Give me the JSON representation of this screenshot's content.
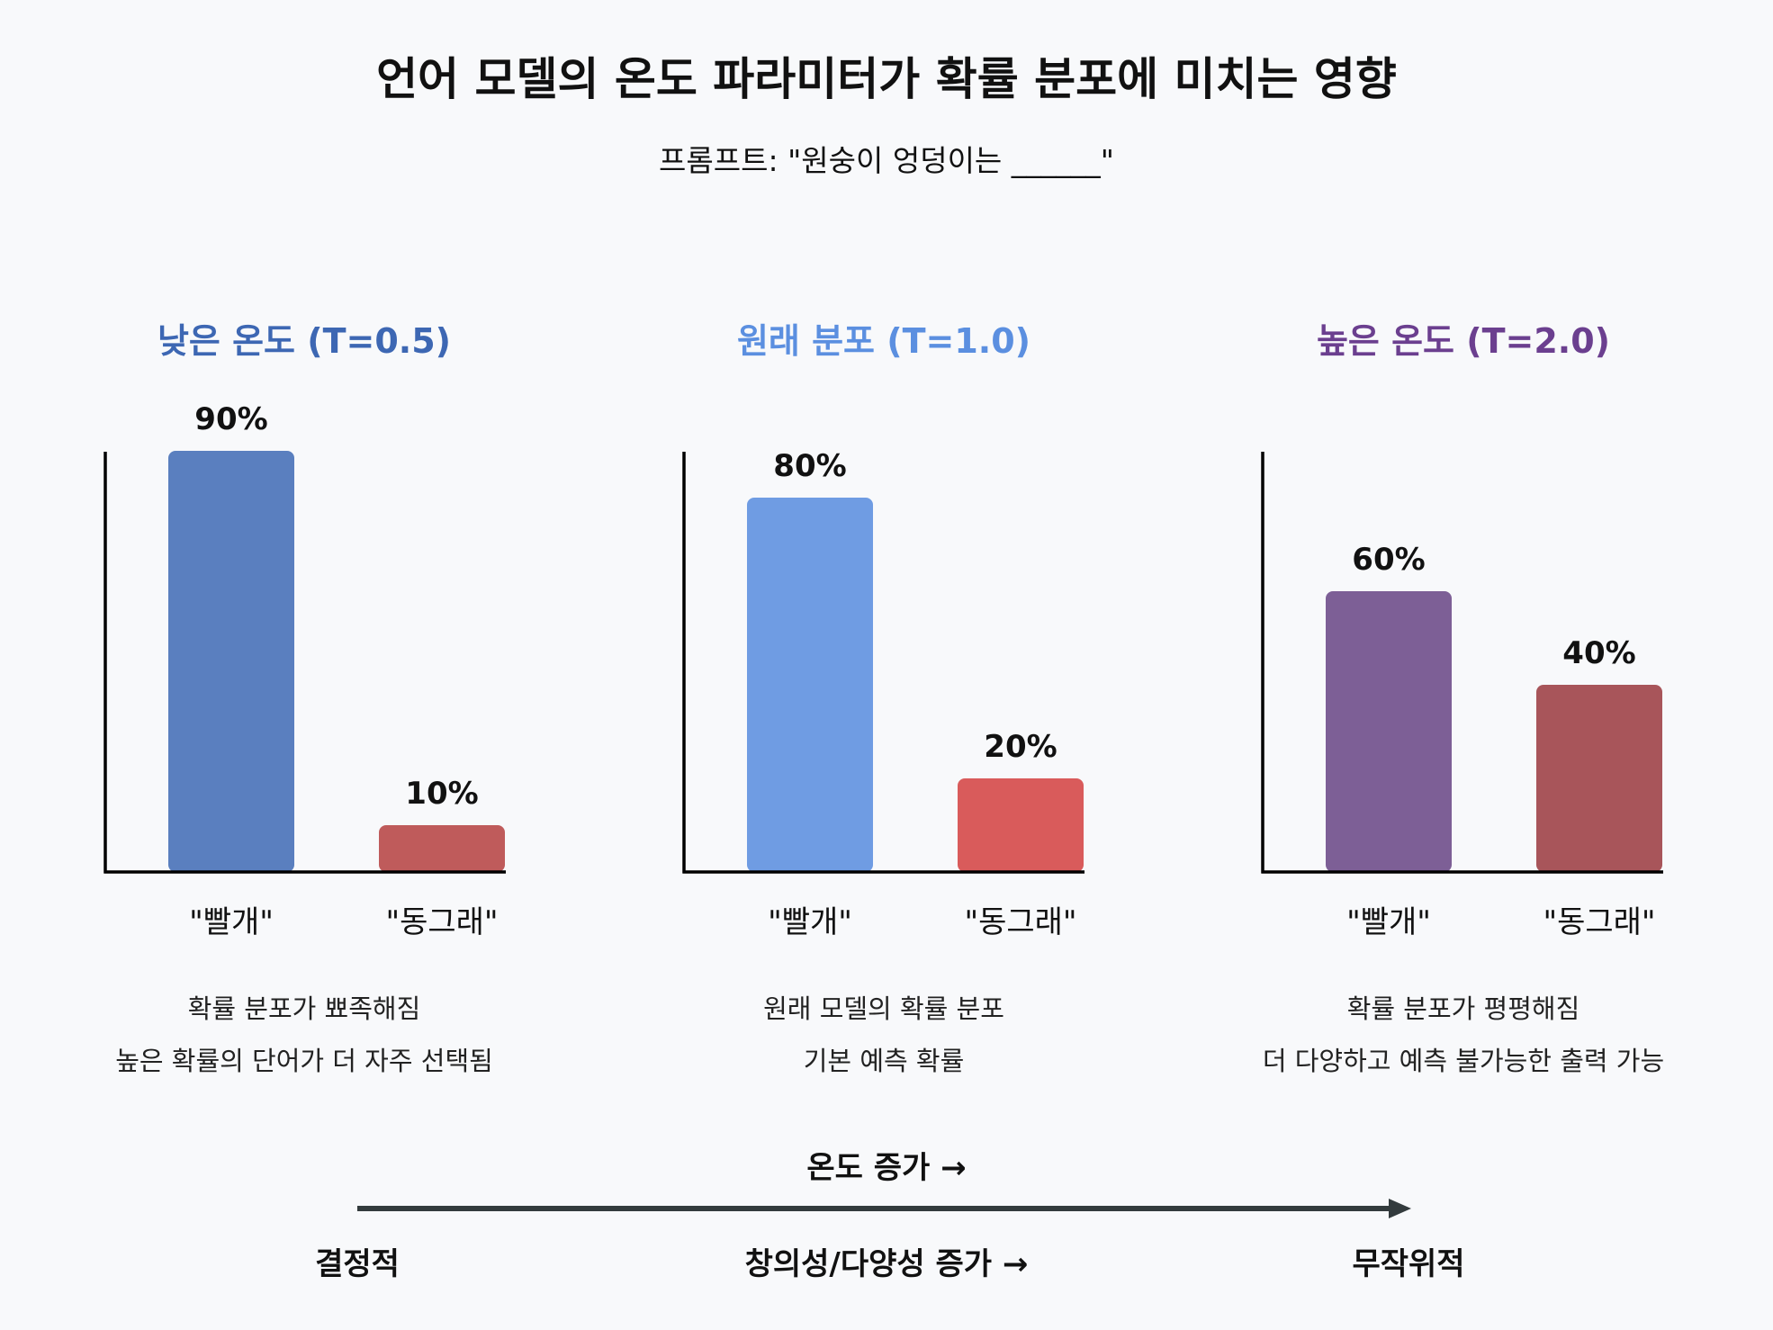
{
  "title": "언어 모델의 온도 파라미터가 확률 분포에 미치는 영향",
  "subtitle": "프롬프트: \"원숭이 엉덩이는 ______\"",
  "chart_data": [
    {
      "type": "bar",
      "title": "낮은 온도 (T=0.5)",
      "title_color": "#3d67b3",
      "categories": [
        "\"빨개\"",
        "\"동그래\""
      ],
      "values": [
        90,
        10
      ],
      "value_labels": [
        "90%",
        "10%"
      ],
      "colors": [
        "#5a7fbf",
        "#bf5b5b"
      ],
      "ylim": [
        0,
        100
      ],
      "description": [
        "확률 분포가 뾰족해짐",
        "높은 확률의 단어가 더 자주 선택됨"
      ]
    },
    {
      "type": "bar",
      "title": "원래 분포 (T=1.0)",
      "title_color": "#5b8fe0",
      "categories": [
        "\"빨개\"",
        "\"동그래\""
      ],
      "values": [
        80,
        20
      ],
      "value_labels": [
        "80%",
        "20%"
      ],
      "colors": [
        "#6f9ce3",
        "#d95b5b"
      ],
      "ylim": [
        0,
        100
      ],
      "description": [
        "원래 모델의 확률 분포",
        "기본 예측 확률"
      ]
    },
    {
      "type": "bar",
      "title": "높은 온도 (T=2.0)",
      "title_color": "#6b3f8f",
      "categories": [
        "\"빨개\"",
        "\"동그래\""
      ],
      "values": [
        60,
        40
      ],
      "value_labels": [
        "60%",
        "40%"
      ],
      "colors": [
        "#7d5f96",
        "#a8555a"
      ],
      "ylim": [
        0,
        100
      ],
      "description": [
        "확률 분포가 평평해짐",
        "더 다양하고 예측 불가능한 출력 가능"
      ]
    }
  ],
  "arrow": {
    "label": "온도 증가 →",
    "left_label": "결정적",
    "middle_label": "창의성/다양성 증가 →",
    "right_label": "무작위적",
    "color": "#333b3d"
  }
}
